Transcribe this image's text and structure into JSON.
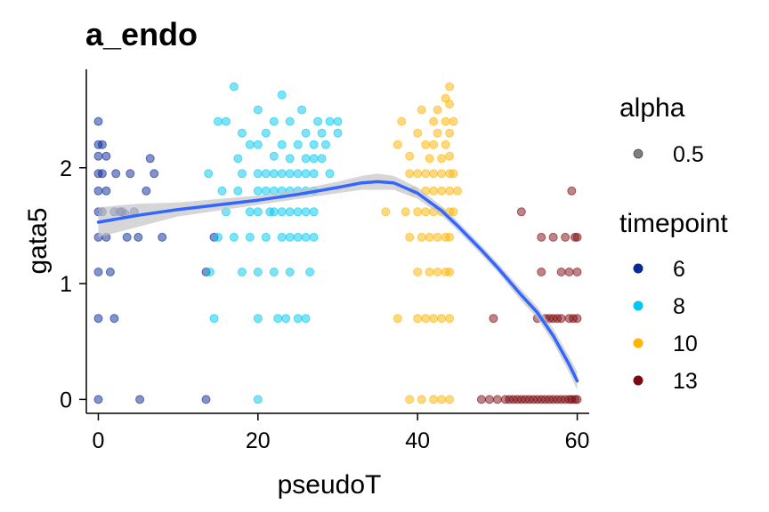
{
  "chart_data": {
    "type": "scatter",
    "title": "a_endo",
    "xlabel": "pseudoT",
    "ylabel": "gata5",
    "xlim": [
      -1.5,
      61.5
    ],
    "ylim": [
      -0.12,
      2.85
    ],
    "x_ticks": [
      0,
      20,
      40,
      60
    ],
    "y_ticks": [
      0,
      1,
      2
    ],
    "x_tick_labels": [
      "0",
      "20",
      "40",
      "60"
    ],
    "y_tick_labels": [
      "0",
      "1",
      "2"
    ],
    "grid": false,
    "legend_position": "right",
    "legend": {
      "alpha_title": "alpha",
      "alpha_label": "0.5",
      "color_title": "timepoint"
    },
    "series": [
      {
        "name": "6",
        "color": "#0a2896",
        "points": [
          [
            0.0,
            2.4
          ],
          [
            0.0,
            2.2
          ],
          [
            0.0,
            2.1
          ],
          [
            0.0,
            1.95
          ],
          [
            0.0,
            1.8
          ],
          [
            0.0,
            1.62
          ],
          [
            0.0,
            1.4
          ],
          [
            0.0,
            1.1
          ],
          [
            0.0,
            0.7
          ],
          [
            0.0,
            0.0
          ],
          [
            0.5,
            2.2
          ],
          [
            0.5,
            1.95
          ],
          [
            0.5,
            1.62
          ],
          [
            1.0,
            2.1
          ],
          [
            1.0,
            1.8
          ],
          [
            1.0,
            1.4
          ],
          [
            1.5,
            1.1
          ],
          [
            2.0,
            1.62
          ],
          [
            2.0,
            0.7
          ],
          [
            2.2,
            1.95
          ],
          [
            2.7,
            1.62
          ],
          [
            3.0,
            1.62
          ],
          [
            3.4,
            1.6
          ],
          [
            3.6,
            1.4
          ],
          [
            4.0,
            1.95
          ],
          [
            4.5,
            1.62
          ],
          [
            5.0,
            1.4
          ],
          [
            5.2,
            0.0
          ],
          [
            6.0,
            1.8
          ],
          [
            6.5,
            2.08
          ],
          [
            7.0,
            1.95
          ],
          [
            8.0,
            1.4
          ],
          [
            13.5,
            1.1
          ],
          [
            13.5,
            0.0
          ],
          [
            14.5,
            1.4
          ]
        ]
      },
      {
        "name": "8",
        "color": "#00c8f0",
        "points": [
          [
            13.8,
            1.95
          ],
          [
            14.0,
            1.1
          ],
          [
            14.5,
            0.7
          ],
          [
            15.0,
            1.4
          ],
          [
            15.0,
            2.4
          ],
          [
            15.5,
            1.8
          ],
          [
            16.0,
            1.62
          ],
          [
            16.0,
            2.4
          ],
          [
            17.0,
            2.7
          ],
          [
            17.0,
            1.4
          ],
          [
            17.5,
            1.8
          ],
          [
            17.5,
            2.08
          ],
          [
            18.0,
            2.3
          ],
          [
            18.0,
            1.1
          ],
          [
            18.0,
            1.95
          ],
          [
            19.0,
            2.2
          ],
          [
            19.0,
            1.62
          ],
          [
            19.0,
            1.4
          ],
          [
            20.0,
            2.5
          ],
          [
            20.0,
            2.2
          ],
          [
            20.0,
            0.0
          ],
          [
            20.0,
            1.95
          ],
          [
            20.0,
            1.8
          ],
          [
            20.0,
            1.62
          ],
          [
            20.0,
            1.1
          ],
          [
            20.0,
            0.7
          ],
          [
            21.0,
            2.3
          ],
          [
            21.0,
            1.95
          ],
          [
            21.0,
            1.8
          ],
          [
            21.0,
            1.4
          ],
          [
            21.5,
            1.62
          ],
          [
            22.0,
            2.4
          ],
          [
            22.0,
            2.1
          ],
          [
            22.0,
            1.95
          ],
          [
            22.0,
            1.8
          ],
          [
            22.0,
            1.62
          ],
          [
            22.0,
            1.1
          ],
          [
            22.5,
            0.7
          ],
          [
            23.0,
            2.63
          ],
          [
            23.0,
            2.2
          ],
          [
            23.0,
            1.95
          ],
          [
            23.0,
            1.8
          ],
          [
            23.0,
            1.62
          ],
          [
            23.0,
            1.4
          ],
          [
            23.5,
            0.7
          ],
          [
            24.0,
            2.4
          ],
          [
            24.0,
            2.08
          ],
          [
            24.0,
            1.95
          ],
          [
            24.0,
            1.8
          ],
          [
            24.0,
            1.62
          ],
          [
            24.0,
            1.4
          ],
          [
            24.0,
            1.1
          ],
          [
            25.0,
            2.2
          ],
          [
            25.0,
            1.95
          ],
          [
            25.0,
            1.8
          ],
          [
            25.0,
            1.62
          ],
          [
            25.0,
            1.4
          ],
          [
            25.0,
            0.7
          ],
          [
            25.5,
            2.5
          ],
          [
            26.0,
            2.3
          ],
          [
            26.0,
            2.08
          ],
          [
            26.0,
            1.95
          ],
          [
            26.0,
            1.8
          ],
          [
            26.0,
            1.62
          ],
          [
            26.0,
            1.4
          ],
          [
            26.0,
            0.7
          ],
          [
            26.5,
            1.1
          ],
          [
            27.0,
            2.2
          ],
          [
            27.0,
            2.08
          ],
          [
            27.0,
            1.95
          ],
          [
            27.0,
            1.8
          ],
          [
            27.0,
            1.62
          ],
          [
            27.0,
            1.4
          ],
          [
            27.5,
            2.4
          ],
          [
            28.0,
            2.3
          ],
          [
            28.0,
            2.08
          ],
          [
            28.5,
            2.2
          ],
          [
            29.0,
            1.95
          ],
          [
            29.0,
            2.4
          ],
          [
            30.0,
            2.3
          ],
          [
            30.0,
            2.4
          ]
        ]
      },
      {
        "name": "10",
        "color": "#ffb400",
        "points": [
          [
            36.0,
            1.62
          ],
          [
            37.5,
            2.2
          ],
          [
            37.5,
            0.7
          ],
          [
            38.0,
            2.4
          ],
          [
            38.5,
            1.62
          ],
          [
            39.0,
            2.1
          ],
          [
            39.0,
            1.95
          ],
          [
            39.0,
            1.4
          ],
          [
            39.0,
            0.0
          ],
          [
            39.5,
            1.8
          ],
          [
            40.0,
            2.3
          ],
          [
            40.0,
            1.95
          ],
          [
            40.0,
            1.62
          ],
          [
            40.0,
            1.1
          ],
          [
            40.0,
            0.7
          ],
          [
            40.5,
            2.5
          ],
          [
            40.5,
            1.4
          ],
          [
            40.5,
            0.0
          ],
          [
            41.0,
            2.2
          ],
          [
            41.0,
            1.95
          ],
          [
            41.0,
            1.8
          ],
          [
            41.0,
            1.62
          ],
          [
            41.0,
            0.7
          ],
          [
            41.5,
            2.08
          ],
          [
            41.5,
            1.4
          ],
          [
            41.5,
            1.1
          ],
          [
            42.0,
            2.4
          ],
          [
            42.0,
            2.2
          ],
          [
            42.0,
            1.95
          ],
          [
            42.0,
            1.8
          ],
          [
            42.0,
            1.62
          ],
          [
            42.0,
            0.7
          ],
          [
            42.0,
            0.0
          ],
          [
            42.5,
            2.5
          ],
          [
            42.5,
            2.3
          ],
          [
            42.5,
            1.4
          ],
          [
            42.5,
            1.1
          ],
          [
            43.0,
            2.08
          ],
          [
            43.0,
            1.95
          ],
          [
            43.0,
            1.8
          ],
          [
            43.0,
            1.62
          ],
          [
            43.0,
            0.7
          ],
          [
            43.0,
            0.0
          ],
          [
            43.5,
            2.6
          ],
          [
            43.5,
            2.4
          ],
          [
            43.5,
            2.2
          ],
          [
            43.5,
            1.4
          ],
          [
            43.5,
            1.1
          ],
          [
            44.0,
            2.7
          ],
          [
            44.0,
            2.55
          ],
          [
            44.0,
            2.3
          ],
          [
            44.0,
            2.1
          ],
          [
            44.0,
            1.95
          ],
          [
            44.0,
            1.8
          ],
          [
            44.0,
            1.62
          ],
          [
            44.0,
            1.4
          ],
          [
            44.0,
            1.1
          ],
          [
            44.0,
            0.7
          ],
          [
            44.0,
            0.0
          ],
          [
            44.5,
            2.4
          ],
          [
            44.5,
            1.95
          ],
          [
            44.5,
            1.62
          ],
          [
            45.0,
            1.8
          ]
        ]
      },
      {
        "name": "13",
        "color": "#7d0a10",
        "points": [
          [
            48.0,
            0.0
          ],
          [
            49.0,
            0.0
          ],
          [
            49.5,
            0.7
          ],
          [
            50.0,
            0.0
          ],
          [
            51.0,
            0.0
          ],
          [
            51.5,
            0.0
          ],
          [
            52.0,
            0.0
          ],
          [
            52.5,
            0.0
          ],
          [
            53.0,
            0.0
          ],
          [
            53.5,
            0.0
          ],
          [
            53.0,
            1.62
          ],
          [
            54.0,
            0.0
          ],
          [
            54.5,
            0.0
          ],
          [
            55.0,
            0.0
          ],
          [
            55.0,
            0.7
          ],
          [
            55.5,
            0.0
          ],
          [
            55.5,
            1.1
          ],
          [
            55.5,
            1.4
          ],
          [
            56.0,
            0.0
          ],
          [
            56.0,
            0.7
          ],
          [
            56.5,
            0.0
          ],
          [
            56.5,
            0.7
          ],
          [
            57.0,
            0.0
          ],
          [
            57.0,
            0.7
          ],
          [
            57.0,
            1.4
          ],
          [
            57.5,
            0.0
          ],
          [
            57.5,
            0.7
          ],
          [
            58.0,
            0.0
          ],
          [
            58.0,
            1.1
          ],
          [
            58.0,
            0.7
          ],
          [
            58.5,
            0.0
          ],
          [
            58.5,
            1.4
          ],
          [
            59.0,
            0.0
          ],
          [
            59.0,
            0.7
          ],
          [
            59.0,
            1.1
          ],
          [
            59.3,
            0.0
          ],
          [
            59.3,
            1.8
          ],
          [
            59.5,
            0.7
          ],
          [
            59.7,
            0.0
          ],
          [
            59.7,
            1.4
          ],
          [
            60.0,
            0.0
          ],
          [
            60.0,
            0.7
          ],
          [
            60.0,
            1.1
          ],
          [
            60.0,
            1.4
          ]
        ]
      }
    ],
    "smooth": {
      "color": "#3366ff",
      "band_color": "#c4c4c4",
      "points": [
        [
          0,
          1.53
        ],
        [
          5,
          1.59
        ],
        [
          10,
          1.64
        ],
        [
          15,
          1.68
        ],
        [
          20,
          1.72
        ],
        [
          25,
          1.77
        ],
        [
          30,
          1.83
        ],
        [
          33,
          1.87
        ],
        [
          35,
          1.88
        ],
        [
          37,
          1.87
        ],
        [
          40,
          1.78
        ],
        [
          43,
          1.63
        ],
        [
          45,
          1.5
        ],
        [
          48,
          1.29
        ],
        [
          50,
          1.14
        ],
        [
          53,
          0.9
        ],
        [
          55,
          0.75
        ],
        [
          57,
          0.55
        ],
        [
          59,
          0.3
        ],
        [
          60,
          0.16
        ]
      ],
      "band_halfwidth": [
        0.13,
        0.1,
        0.06,
        0.05,
        0.04,
        0.04,
        0.05,
        0.06,
        0.07,
        0.06,
        0.05,
        0.04,
        0.04,
        0.04,
        0.04,
        0.05,
        0.05,
        0.06,
        0.07,
        0.08
      ]
    }
  }
}
